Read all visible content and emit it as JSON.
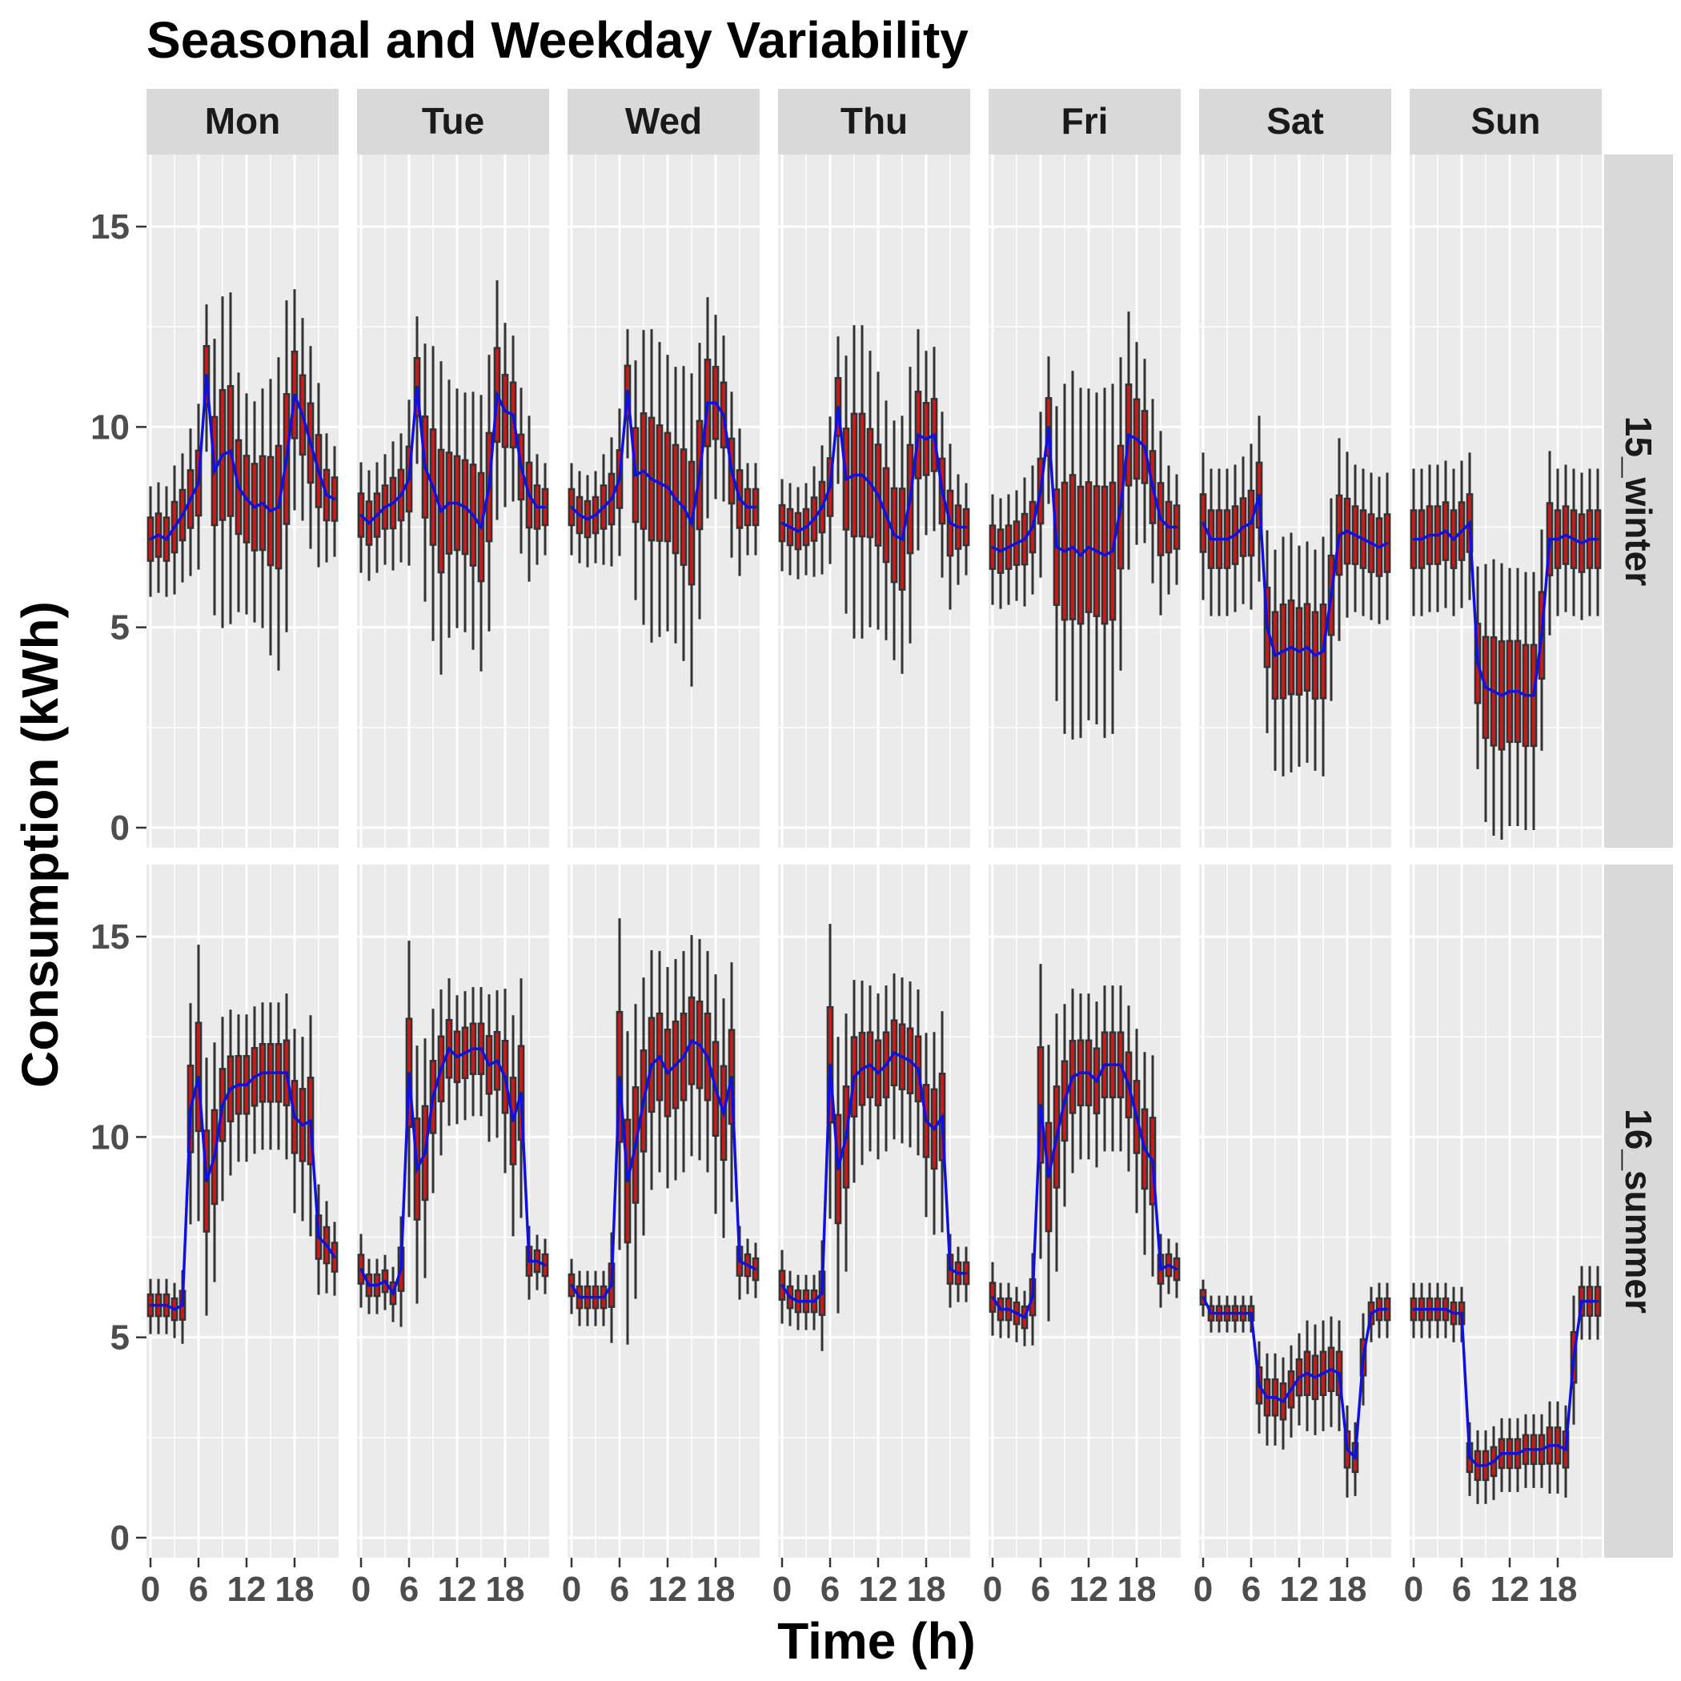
{
  "chart_data": {
    "type": "boxplot",
    "title": "Seasonal and Weekday Variability",
    "xlabel": "Time (h)",
    "ylabel": "Consumption (kWh)",
    "x_ticks": [
      0,
      6,
      12,
      18
    ],
    "x_tick_labels": [
      "0",
      "6",
      "12",
      "18"
    ],
    "y_ticks": [
      0,
      5,
      10,
      15
    ],
    "ylim": [
      -0.5,
      16.8
    ],
    "xlim": [
      -0.5,
      23.5
    ],
    "facet_columns": [
      "Mon",
      "Tue",
      "Wed",
      "Thu",
      "Fri",
      "Sat",
      "Sun"
    ],
    "facet_rows": [
      "15_winter",
      "16_summer"
    ],
    "box_fill": "#cc1a1a",
    "box_line": "#333333",
    "mean_line_color": "#1010e0",
    "panel_background": "#ebebeb",
    "strip_background": "#d9d9d9",
    "grid": true,
    "mean_line": {
      "15_winter": {
        "Mon": [
          7.2,
          7.3,
          7.2,
          7.5,
          7.8,
          8.2,
          8.6,
          11.3,
          8.9,
          9.3,
          9.4,
          8.5,
          8.2,
          8.0,
          8.1,
          7.9,
          8.0,
          9.2,
          10.8,
          10.3,
          9.6,
          8.9,
          8.3,
          8.2
        ],
        "Tue": [
          7.8,
          7.6,
          7.8,
          8.0,
          8.1,
          8.3,
          8.7,
          11.0,
          9.0,
          8.5,
          7.9,
          8.1,
          8.1,
          8.0,
          7.8,
          7.5,
          8.5,
          10.8,
          10.4,
          10.3,
          9.0,
          8.3,
          8.0,
          8.0
        ],
        "Wed": [
          8.0,
          7.8,
          7.7,
          7.8,
          8.0,
          8.2,
          8.7,
          10.9,
          8.8,
          8.9,
          8.7,
          8.6,
          8.5,
          8.2,
          8.0,
          7.6,
          8.8,
          10.6,
          10.6,
          10.3,
          8.9,
          8.2,
          8.0,
          8.0
        ],
        "Thu": [
          7.6,
          7.5,
          7.4,
          7.5,
          7.7,
          8.0,
          8.5,
          10.5,
          8.7,
          8.8,
          8.8,
          8.6,
          8.3,
          7.8,
          7.3,
          7.2,
          8.2,
          9.8,
          9.7,
          9.8,
          8.4,
          7.6,
          7.5,
          7.5
        ],
        "Fri": [
          7.0,
          6.9,
          7.0,
          7.1,
          7.2,
          7.5,
          8.4,
          10.0,
          7.0,
          6.9,
          7.0,
          6.8,
          7.0,
          6.9,
          6.8,
          6.9,
          8.0,
          9.8,
          9.7,
          9.5,
          8.5,
          7.7,
          7.5,
          7.5
        ],
        "Sat": [
          7.6,
          7.2,
          7.2,
          7.2,
          7.3,
          7.5,
          7.6,
          8.3,
          5.0,
          4.3,
          4.4,
          4.5,
          4.4,
          4.5,
          4.3,
          4.4,
          5.8,
          7.3,
          7.4,
          7.3,
          7.2,
          7.1,
          7.0,
          7.1
        ],
        "Sun": [
          7.2,
          7.2,
          7.3,
          7.3,
          7.4,
          7.2,
          7.4,
          7.6,
          4.1,
          3.5,
          3.4,
          3.3,
          3.4,
          3.4,
          3.3,
          3.3,
          4.8,
          7.2,
          7.2,
          7.3,
          7.2,
          7.1,
          7.2,
          7.2
        ]
      },
      "16_summer": {
        "Mon": [
          5.8,
          5.8,
          5.8,
          5.7,
          5.8,
          10.7,
          11.5,
          8.9,
          9.5,
          10.8,
          11.2,
          11.3,
          11.3,
          11.5,
          11.6,
          11.6,
          11.6,
          11.6,
          10.5,
          10.3,
          10.4,
          7.5,
          7.3,
          7.0
        ],
        "Tue": [
          6.7,
          6.3,
          6.3,
          6.4,
          6.1,
          6.7,
          11.6,
          9.2,
          9.6,
          11.0,
          11.7,
          12.2,
          12.0,
          12.1,
          12.2,
          12.2,
          11.8,
          11.9,
          11.5,
          10.4,
          11.1,
          6.9,
          6.9,
          6.8
        ],
        "Wed": [
          6.3,
          6.0,
          6.0,
          6.0,
          6.0,
          6.3,
          11.5,
          8.9,
          9.8,
          10.9,
          11.8,
          12.0,
          11.6,
          11.8,
          12.0,
          12.4,
          12.3,
          12.0,
          11.2,
          10.6,
          11.5,
          6.9,
          6.8,
          6.7
        ],
        "Thu": [
          6.3,
          6.0,
          5.9,
          5.9,
          5.9,
          6.1,
          11.8,
          9.2,
          10.0,
          11.5,
          11.7,
          11.8,
          11.6,
          11.8,
          12.1,
          12.0,
          11.9,
          11.7,
          10.4,
          10.2,
          10.5,
          6.7,
          6.6,
          6.6
        ],
        "Fri": [
          6.0,
          5.7,
          5.7,
          5.6,
          5.5,
          6.0,
          10.8,
          9.0,
          10.0,
          10.9,
          11.5,
          11.6,
          11.6,
          11.4,
          11.8,
          11.8,
          11.8,
          11.3,
          10.5,
          9.7,
          9.4,
          6.7,
          6.8,
          6.7
        ],
        "Sat": [
          6.0,
          5.6,
          5.6,
          5.6,
          5.6,
          5.6,
          5.6,
          3.8,
          3.5,
          3.5,
          3.4,
          3.7,
          4.0,
          4.1,
          4.0,
          4.1,
          4.2,
          4.1,
          2.2,
          2.0,
          4.5,
          5.6,
          5.7,
          5.7
        ],
        "Sun": [
          5.7,
          5.7,
          5.7,
          5.7,
          5.7,
          5.6,
          5.6,
          2.0,
          1.8,
          1.8,
          1.9,
          2.1,
          2.1,
          2.1,
          2.2,
          2.2,
          2.2,
          2.3,
          2.3,
          2.2,
          4.5,
          5.9,
          5.9,
          5.9
        ]
      }
    },
    "box_spread": {
      "15_winter": {
        "Mon": [
          0.6,
          0.6,
          0.6,
          0.7,
          0.7,
          0.8,
          0.9,
          0.8,
          1.5,
          1.8,
          1.8,
          1.3,
          1.2,
          1.2,
          1.3,
          1.5,
          1.7,
          1.8,
          1.2,
          1.1,
          1.1,
          1.0,
          0.7,
          0.6
        ],
        "Tue": [
          0.6,
          0.6,
          0.6,
          0.6,
          0.7,
          0.7,
          0.9,
          0.8,
          1.4,
          1.6,
          1.7,
          1.4,
          1.3,
          1.3,
          1.4,
          1.5,
          1.5,
          1.3,
          1.0,
          0.9,
          0.9,
          0.9,
          0.6,
          0.5
        ],
        "Wed": [
          0.5,
          0.5,
          0.5,
          0.5,
          0.6,
          0.7,
          0.8,
          0.7,
          1.3,
          1.6,
          1.7,
          1.6,
          1.5,
          1.5,
          1.6,
          1.7,
          1.5,
          1.2,
          1.0,
          0.9,
          0.9,
          0.8,
          0.5,
          0.5
        ],
        "Thu": [
          0.5,
          0.5,
          0.5,
          0.5,
          0.6,
          0.7,
          0.8,
          0.8,
          1.4,
          1.7,
          1.7,
          1.5,
          1.4,
          1.3,
          1.3,
          1.4,
          1.5,
          1.2,
          1.0,
          1.0,
          0.9,
          0.9,
          0.6,
          0.5
        ],
        "Fri": [
          0.6,
          0.6,
          0.6,
          0.6,
          0.7,
          0.7,
          0.9,
          0.8,
          1.6,
          1.9,
          2.0,
          1.9,
          1.8,
          1.8,
          1.9,
          1.9,
          1.7,
          1.4,
          1.1,
          1.0,
          1.0,
          1.0,
          0.7,
          0.6
        ],
        "Sat": [
          0.8,
          0.8,
          0.8,
          0.8,
          0.8,
          0.8,
          0.9,
          0.9,
          1.1,
          1.2,
          1.3,
          1.3,
          1.2,
          1.2,
          1.2,
          1.3,
          1.1,
          1.1,
          0.9,
          0.8,
          0.8,
          0.8,
          0.8,
          0.8
        ],
        "Sun": [
          0.8,
          0.8,
          0.8,
          0.8,
          0.8,
          0.8,
          0.8,
          0.8,
          1.1,
          1.4,
          1.5,
          1.5,
          1.4,
          1.4,
          1.4,
          1.4,
          1.2,
          1.0,
          0.8,
          0.8,
          0.8,
          0.8,
          0.8,
          0.8
        ]
      },
      "16_summer": {
        "Mon": [
          0.3,
          0.3,
          0.3,
          0.3,
          0.4,
          1.2,
          1.5,
          1.4,
          1.3,
          1.0,
          0.9,
          0.8,
          0.8,
          0.8,
          0.8,
          0.8,
          0.8,
          0.9,
          1.0,
          1.0,
          1.2,
          0.6,
          0.5,
          0.4
        ],
        "Tue": [
          0.4,
          0.3,
          0.3,
          0.3,
          0.3,
          0.6,
          1.5,
          1.4,
          1.3,
          1.0,
          0.9,
          0.8,
          0.7,
          0.7,
          0.7,
          0.7,
          0.8,
          0.8,
          1.0,
          1.2,
          1.3,
          0.4,
          0.3,
          0.3
        ],
        "Wed": [
          0.3,
          0.3,
          0.3,
          0.3,
          0.3,
          0.6,
          1.8,
          1.7,
          1.6,
          1.4,
          1.3,
          1.2,
          1.2,
          1.2,
          1.2,
          1.2,
          1.2,
          1.2,
          1.3,
          1.3,
          1.3,
          0.4,
          0.3,
          0.3
        ],
        "Thu": [
          0.4,
          0.3,
          0.3,
          0.3,
          0.3,
          0.6,
          1.6,
          1.5,
          1.4,
          1.1,
          1.0,
          0.9,
          0.9,
          0.9,
          0.9,
          0.9,
          0.9,
          0.9,
          1.0,
          1.1,
          1.2,
          0.4,
          0.3,
          0.3
        ],
        "Fri": [
          0.4,
          0.3,
          0.3,
          0.3,
          0.3,
          0.5,
          1.6,
          1.5,
          1.4,
          1.1,
          1.0,
          0.9,
          0.9,
          0.9,
          0.9,
          0.9,
          0.9,
          0.9,
          1.0,
          1.1,
          1.2,
          0.4,
          0.3,
          0.3
        ],
        "Sat": [
          0.2,
          0.2,
          0.2,
          0.2,
          0.2,
          0.2,
          0.2,
          0.5,
          0.5,
          0.5,
          0.5,
          0.5,
          0.5,
          0.6,
          0.6,
          0.6,
          0.6,
          0.6,
          0.5,
          0.4,
          0.5,
          0.3,
          0.3,
          0.3
        ],
        "Sun": [
          0.3,
          0.3,
          0.3,
          0.3,
          0.3,
          0.3,
          0.3,
          0.4,
          0.4,
          0.4,
          0.4,
          0.4,
          0.4,
          0.4,
          0.4,
          0.4,
          0.4,
          0.5,
          0.5,
          0.5,
          0.7,
          0.4,
          0.4,
          0.4
        ]
      }
    }
  }
}
